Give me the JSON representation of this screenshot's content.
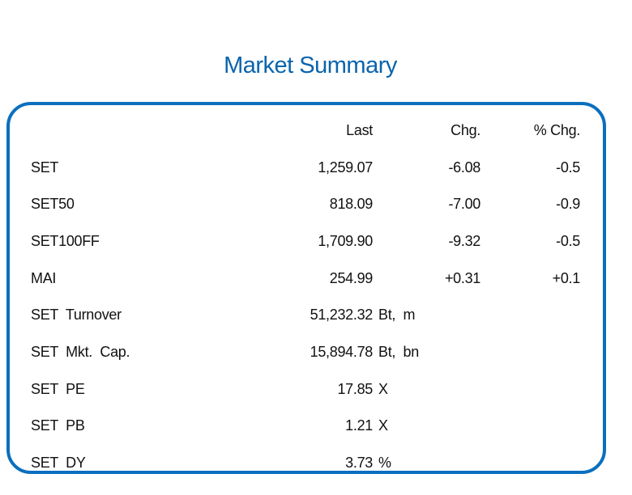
{
  "title": "Market Summary",
  "headers": {
    "last": "Last",
    "chg": "Chg.",
    "pct_chg": "% Chg."
  },
  "rows": [
    {
      "name": "SET",
      "last": "1,259.07",
      "chg": "-6.08",
      "pct_chg": "-0.5"
    },
    {
      "name": "SET50",
      "last": "818.09",
      "chg": "-7.00",
      "pct_chg": "-0.9"
    },
    {
      "name": "SET100FF",
      "last": "1,709.90",
      "chg": "-9.32",
      "pct_chg": "-0.5"
    },
    {
      "name": "MAI",
      "last": "254.99",
      "chg": "+0.31",
      "pct_chg": "+0.1"
    },
    {
      "name": "SET  Turnover",
      "last": "51,232.32",
      "unit": "Bt,  m"
    },
    {
      "name": "SET  Mkt.  Cap.",
      "last": "15,894.78",
      "unit": "Bt,  bn"
    },
    {
      "name": "SET  PE",
      "last": "17.85",
      "unit": "X"
    },
    {
      "name": "SET  PB",
      "last": "1.21",
      "unit": "X"
    },
    {
      "name": "SET  DY",
      "last": "3.73",
      "unit": "%"
    }
  ],
  "colors": {
    "title": "#0a64ad",
    "border": "#0a6fbf",
    "text": "#111111"
  }
}
